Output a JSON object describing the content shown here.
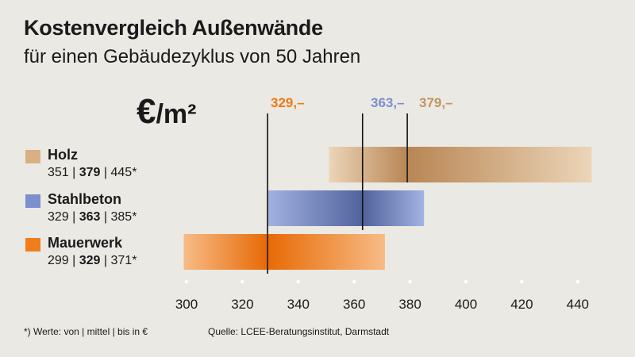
{
  "header": {
    "title": "Kostenvergleich Außenwände",
    "subtitle": "für einen Gebäudezyklus von 50 Jahren"
  },
  "unit": {
    "euro": "€",
    "per_m2": "/m²"
  },
  "legend": [
    {
      "name": "Holz",
      "low": "351",
      "mid": "379",
      "high": "445*",
      "color": "#d9b083"
    },
    {
      "name": "Stahlbeton",
      "low": "329",
      "mid": "363",
      "high": "385*",
      "color": "#7c8fcf"
    },
    {
      "name": "Mauerwerk",
      "low": "299",
      "mid": "329",
      "high": "371*",
      "color": "#f07d1b"
    }
  ],
  "footer": {
    "footnote": "*) Werte: von | mittel | bis in €",
    "source": "Quelle: LCEE-Beratungsinstitut, Darmstadt"
  },
  "chart_data": {
    "type": "bar",
    "orientation": "horizontal-range",
    "title": "Kostenvergleich Außenwände",
    "subtitle": "für einen Gebäudezyklus von 50 Jahren",
    "unit": "€/m²",
    "xlim": [
      300,
      450
    ],
    "xticks": [
      300,
      320,
      340,
      360,
      380,
      400,
      420,
      440
    ],
    "series": [
      {
        "name": "Holz",
        "low": 351,
        "mid": 379,
        "high": 445,
        "color": "#d9b083",
        "dark": "#b88654",
        "light": "#ecd5b8"
      },
      {
        "name": "Stahlbeton",
        "low": 329,
        "mid": 363,
        "high": 385,
        "color": "#7c8fcf",
        "dark": "#51629c",
        "light": "#a2b2e2"
      },
      {
        "name": "Mauerwerk",
        "low": 299,
        "mid": 329,
        "high": 371,
        "color": "#f07d1b",
        "dark": "#e86a05",
        "light": "#f7bb86"
      }
    ],
    "markers": [
      {
        "value": 329,
        "label": "329,–",
        "color": "#ef7a12"
      },
      {
        "value": 363,
        "label": "363,–",
        "color": "#7c8fcf"
      },
      {
        "value": 379,
        "label": "379,–",
        "color": "#c29461"
      }
    ]
  }
}
